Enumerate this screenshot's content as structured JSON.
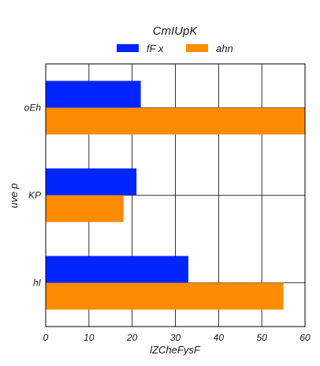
{
  "chart_data": {
    "type": "bar",
    "orientation": "horizontal",
    "title": "CmIUpK",
    "xlabel": "lZCheFysF",
    "ylabel": "uve p",
    "categories": [
      "oEh",
      "KP",
      "hI"
    ],
    "series": [
      {
        "name": "fF x",
        "values": [
          22,
          21,
          33
        ],
        "color": "#0025ff"
      },
      {
        "name": "ahn",
        "values": [
          60,
          18,
          55
        ],
        "color": "#ff8c00"
      }
    ],
    "xlim": [
      0,
      60
    ],
    "xticks": [
      0,
      10,
      20,
      30,
      40,
      50,
      60
    ],
    "grid": true,
    "legend_position": "top-center"
  }
}
